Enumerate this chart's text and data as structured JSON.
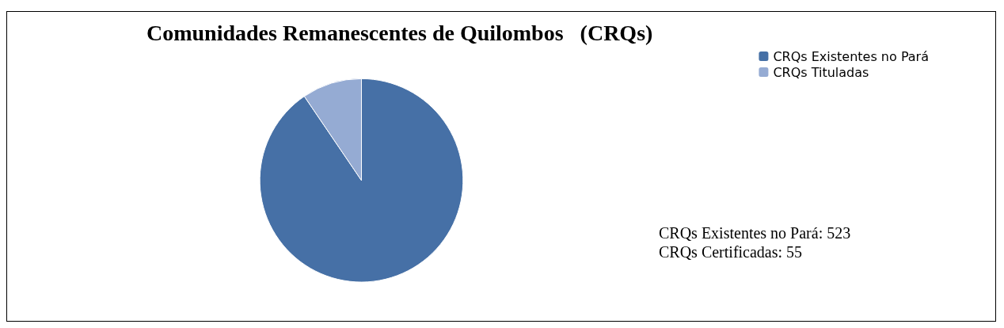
{
  "chart_data": {
    "type": "pie",
    "title": "Comunidades Remanescentes de Quilombos   (CRQs)",
    "categories": [
      "CRQs Existentes no Pará",
      "CRQs Tituladas"
    ],
    "values": [
      90.5,
      9.5
    ],
    "colors": [
      "#4670a6",
      "#95abd3"
    ],
    "legend": "top right",
    "annotations": [
      "CRQs Existentes no Pará: 523",
      "CRQs Certificadas: 55"
    ]
  }
}
